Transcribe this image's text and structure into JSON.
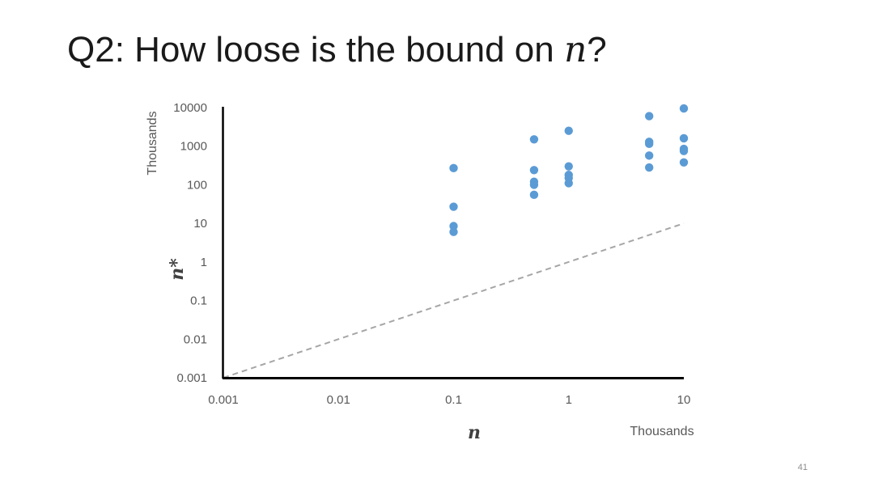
{
  "slide": {
    "title_prefix": "Q2: How loose is the bound on ",
    "title_var": "n",
    "title_suffix": "?",
    "page_number": "41"
  },
  "colors": {
    "points": "#5b9bd5",
    "axis": "#000000",
    "reference_line": "#a6a6a6",
    "text": "#595959"
  },
  "chart_data": {
    "type": "scatter",
    "title": "",
    "xlabel": "n",
    "ylabel": "n*",
    "x_units": "Thousands",
    "y_units": "Thousands",
    "x_scale": "log",
    "y_scale": "log",
    "xlim": [
      0.001,
      10
    ],
    "ylim": [
      0.001,
      10000
    ],
    "x_ticks": [
      "0.001",
      "0.01",
      "0.1",
      "1",
      "10"
    ],
    "y_ticks": [
      "10000",
      "1000",
      "100",
      "10",
      "1",
      "0.1",
      "0.01",
      "0.001"
    ],
    "grid": false,
    "legend": "none",
    "reference_line": {
      "style": "dashed",
      "from": [
        0.001,
        0.001
      ],
      "to": [
        10,
        10
      ]
    },
    "series": [
      {
        "points": [
          [
            0.1,
            270
          ],
          [
            0.1,
            27
          ],
          [
            0.1,
            8.5
          ],
          [
            0.1,
            6
          ],
          [
            0.5,
            1500
          ],
          [
            0.5,
            240
          ],
          [
            0.5,
            120
          ],
          [
            0.5,
            100
          ],
          [
            0.5,
            55
          ],
          [
            1,
            2500
          ],
          [
            1,
            300
          ],
          [
            1,
            180
          ],
          [
            1,
            150
          ],
          [
            1,
            110
          ],
          [
            5,
            6000
          ],
          [
            5,
            1300
          ],
          [
            5,
            1150
          ],
          [
            5,
            570
          ],
          [
            5,
            280
          ],
          [
            10,
            9500
          ],
          [
            10,
            1600
          ],
          [
            10,
            850
          ],
          [
            10,
            750
          ],
          [
            10,
            380
          ]
        ]
      }
    ]
  }
}
